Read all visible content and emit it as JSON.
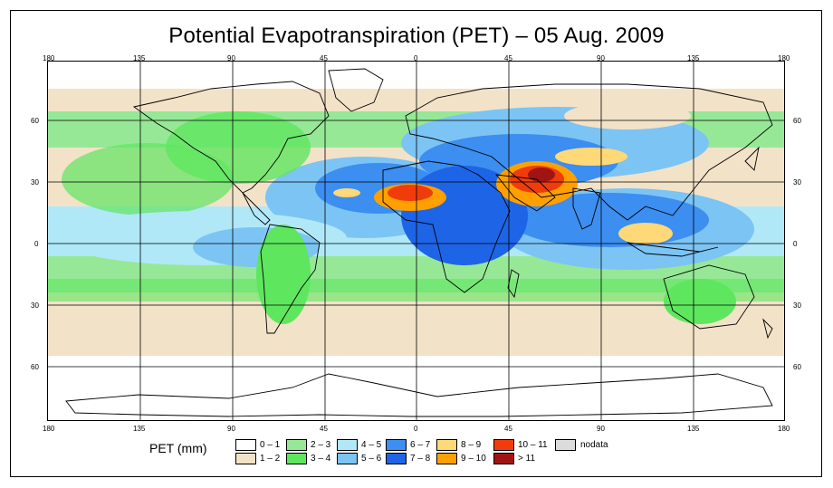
{
  "title": "Potential Evapotranspiration (PET) – 05 Aug. 2009",
  "axis": {
    "top_lon": [
      "180",
      "135",
      "90",
      "45",
      "0",
      "45",
      "90",
      "135",
      "180"
    ],
    "bottom_lon": [
      "180",
      "135",
      "90",
      "45",
      "0",
      "45",
      "90",
      "135",
      "180"
    ],
    "left_lat": [
      "60",
      "30",
      "0",
      "30",
      "60"
    ],
    "right_lat": [
      "60",
      "30",
      "0",
      "30",
      "60"
    ]
  },
  "legend": {
    "title": "PET (mm)",
    "classes": [
      {
        "label": "0 – 1",
        "color": "#ffffff"
      },
      {
        "label": "1 – 2",
        "color": "#f2e2c8"
      },
      {
        "label": "2 – 3",
        "color": "#96e896"
      },
      {
        "label": "3 – 4",
        "color": "#5fe65f"
      },
      {
        "label": "4 – 5",
        "color": "#b0e8f8"
      },
      {
        "label": "5 – 6",
        "color": "#7cc4f4"
      },
      {
        "label": "6 – 7",
        "color": "#3c8ef0"
      },
      {
        "label": "7 – 8",
        "color": "#1e64e6"
      },
      {
        "label": "8 – 9",
        "color": "#ffd878"
      },
      {
        "label": "9 – 10",
        "color": "#ffa000"
      },
      {
        "label": "10 – 11",
        "color": "#f03c0a"
      },
      {
        "label": "> 11",
        "color": "#a01414"
      },
      {
        "label": "nodata",
        "color": "#dcdcdc"
      }
    ]
  }
}
